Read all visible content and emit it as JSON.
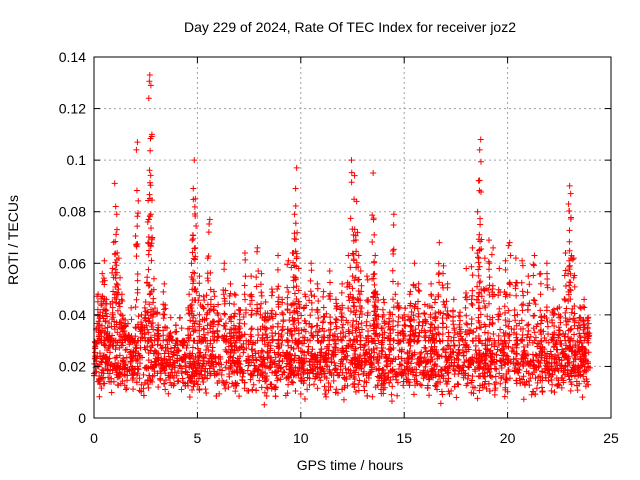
{
  "chart_data": {
    "type": "scatter",
    "title": "Day 229 of 2024, Rate Of TEC Index for receiver joz2",
    "xlabel": "GPS time / hours",
    "ylabel": "ROTI / TECUs",
    "xlim": [
      0,
      25
    ],
    "ylim": [
      0,
      0.14
    ],
    "xticks": [
      0,
      5,
      10,
      15,
      20,
      25
    ],
    "yticks": [
      0,
      0.02,
      0.04,
      0.06,
      0.08,
      0.1,
      0.12,
      0.14
    ],
    "xtick_labels": [
      "0",
      "5",
      "10",
      "15",
      "20",
      "25"
    ],
    "ytick_labels": [
      "0",
      "0.02",
      "0.04",
      "0.06",
      "0.08",
      "0.1",
      "0.12",
      "0.14"
    ],
    "grid": true,
    "marker": "+",
    "color": "#ff0000",
    "series": [
      {
        "name": "ROTI",
        "points": [
          [
            0.1,
            0.021
          ],
          [
            0.2,
            0.048
          ],
          [
            0.3,
            0.041
          ],
          [
            0.4,
            0.056
          ],
          [
            0.5,
            0.061
          ],
          [
            0.6,
            0.046
          ],
          [
            0.75,
            0.032
          ],
          [
            0.9,
            0.058
          ],
          [
            1.0,
            0.091
          ],
          [
            1.05,
            0.082
          ],
          [
            1.1,
            0.079
          ],
          [
            1.2,
            0.062
          ],
          [
            1.35,
            0.048
          ],
          [
            1.5,
            0.038
          ],
          [
            1.7,
            0.032
          ],
          [
            1.9,
            0.03
          ],
          [
            2.05,
            0.104
          ],
          [
            2.1,
            0.107
          ],
          [
            2.3,
            0.04
          ],
          [
            2.5,
            0.045
          ],
          [
            2.6,
            0.076
          ],
          [
            2.65,
            0.124
          ],
          [
            2.7,
            0.133
          ],
          [
            2.75,
            0.129
          ],
          [
            2.8,
            0.11
          ],
          [
            2.9,
            0.054
          ],
          [
            3.1,
            0.036
          ],
          [
            3.4,
            0.052
          ],
          [
            3.7,
            0.033
          ],
          [
            4.0,
            0.03
          ],
          [
            4.3,
            0.028
          ],
          [
            4.6,
            0.048
          ],
          [
            4.75,
            0.069
          ],
          [
            4.8,
            0.089
          ],
          [
            4.85,
            0.1
          ],
          [
            4.9,
            0.085
          ],
          [
            5.1,
            0.055
          ],
          [
            5.3,
            0.047
          ],
          [
            5.5,
            0.062
          ],
          [
            5.6,
            0.077
          ],
          [
            5.8,
            0.049
          ],
          [
            6.0,
            0.044
          ],
          [
            6.3,
            0.06
          ],
          [
            6.6,
            0.052
          ],
          [
            6.8,
            0.048
          ],
          [
            7.0,
            0.042
          ],
          [
            7.3,
            0.064
          ],
          [
            7.6,
            0.055
          ],
          [
            7.9,
            0.066
          ],
          [
            8.1,
            0.056
          ],
          [
            8.3,
            0.045
          ],
          [
            8.6,
            0.05
          ],
          [
            8.9,
            0.063
          ],
          [
            9.1,
            0.046
          ],
          [
            9.4,
            0.061
          ],
          [
            9.6,
            0.064
          ],
          [
            9.7,
            0.079
          ],
          [
            9.75,
            0.089
          ],
          [
            9.8,
            0.097
          ],
          [
            9.9,
            0.058
          ],
          [
            10.2,
            0.048
          ],
          [
            10.5,
            0.06
          ],
          [
            10.8,
            0.052
          ],
          [
            11.1,
            0.049
          ],
          [
            11.4,
            0.057
          ],
          [
            11.7,
            0.046
          ],
          [
            12.0,
            0.052
          ],
          [
            12.3,
            0.063
          ],
          [
            12.45,
            0.1
          ],
          [
            12.55,
            0.071
          ],
          [
            12.6,
            0.094
          ],
          [
            12.7,
            0.084
          ],
          [
            12.8,
            0.063
          ],
          [
            12.9,
            0.057
          ],
          [
            13.2,
            0.055
          ],
          [
            13.5,
            0.095
          ],
          [
            13.55,
            0.071
          ],
          [
            13.6,
            0.063
          ],
          [
            13.7,
            0.048
          ],
          [
            14.0,
            0.046
          ],
          [
            14.3,
            0.041
          ],
          [
            14.5,
            0.079
          ],
          [
            14.7,
            0.052
          ],
          [
            15.0,
            0.04
          ],
          [
            15.3,
            0.049
          ],
          [
            15.5,
            0.06
          ],
          [
            15.7,
            0.052
          ],
          [
            16.0,
            0.044
          ],
          [
            16.3,
            0.052
          ],
          [
            16.5,
            0.046
          ],
          [
            16.7,
            0.068
          ],
          [
            16.9,
            0.059
          ],
          [
            17.1,
            0.052
          ],
          [
            17.4,
            0.046
          ],
          [
            17.7,
            0.041
          ],
          [
            18.0,
            0.058
          ],
          [
            18.3,
            0.066
          ],
          [
            18.55,
            0.08
          ],
          [
            18.6,
            0.092
          ],
          [
            18.65,
            0.104
          ],
          [
            18.7,
            0.108
          ],
          [
            18.9,
            0.062
          ],
          [
            19.1,
            0.069
          ],
          [
            19.3,
            0.066
          ],
          [
            19.6,
            0.058
          ],
          [
            19.9,
            0.061
          ],
          [
            20.1,
            0.068
          ],
          [
            20.4,
            0.062
          ],
          [
            20.7,
            0.061
          ],
          [
            21.0,
            0.055
          ],
          [
            21.3,
            0.063
          ],
          [
            21.6,
            0.056
          ],
          [
            21.9,
            0.06
          ],
          [
            22.2,
            0.05
          ],
          [
            22.5,
            0.043
          ],
          [
            22.8,
            0.064
          ],
          [
            22.95,
            0.083
          ],
          [
            23.0,
            0.09
          ],
          [
            23.05,
            0.087
          ],
          [
            23.2,
            0.062
          ],
          [
            23.5,
            0.043
          ],
          [
            23.7,
            0.046
          ],
          [
            23.9,
            0.039
          ]
        ],
        "dense_band": {
          "x_range": [
            0,
            24
          ],
          "typical_min": 0.004,
          "typical_max": 0.03,
          "typical_center": 0.015
        }
      }
    ]
  }
}
